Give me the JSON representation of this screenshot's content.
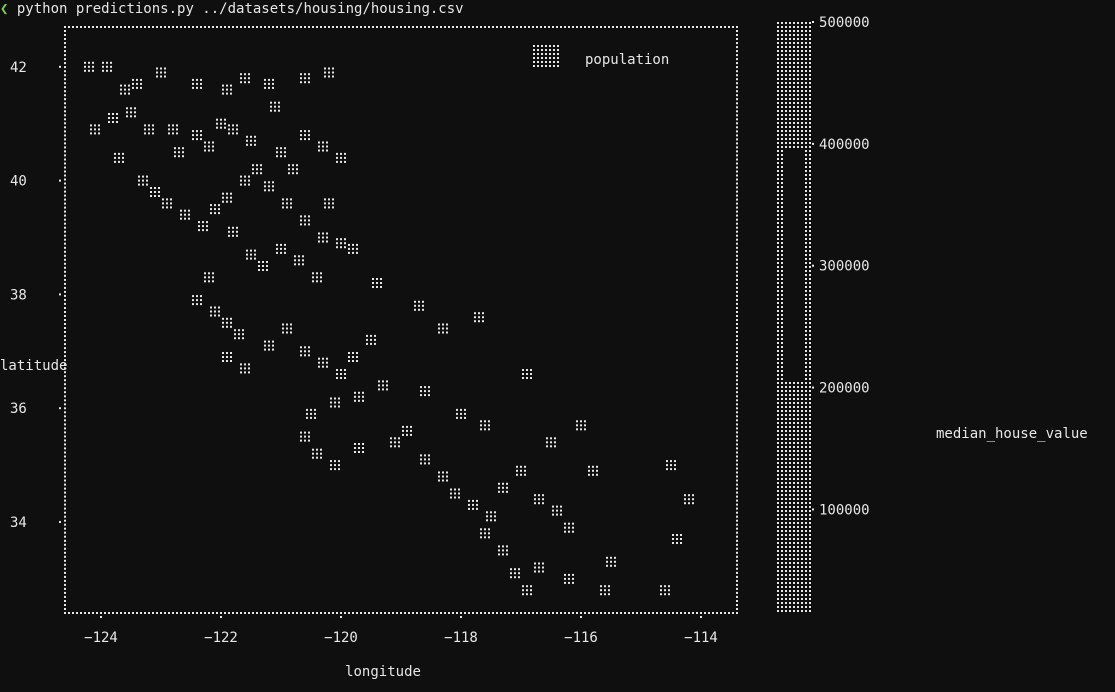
{
  "terminal": {
    "prompt_symbol": "❮",
    "command": "python predictions.py ../datasets/housing/housing.csv"
  },
  "colors": {
    "background": "#0f0f10",
    "foreground": "#e6e6e6",
    "prompt_accent": "#7bd14a"
  },
  "chart_data": {
    "type": "scatter",
    "render_style": "braille-dot terminal plot",
    "xlabel": "longitude",
    "ylabel": "latitude",
    "xlim": [
      -124.6,
      -113.4
    ],
    "ylim": [
      32.4,
      42.7
    ],
    "x_ticks": [
      -124,
      -122,
      -120,
      -118,
      -116,
      -114
    ],
    "x_tick_labels": [
      "−124",
      "−122",
      "−120",
      "−118",
      "−116",
      "−114"
    ],
    "y_ticks": [
      34,
      36,
      38,
      40,
      42
    ],
    "y_tick_labels": [
      "34",
      "36",
      "38",
      "40",
      "42"
    ],
    "legend": {
      "label": "population",
      "placement": "top-right"
    },
    "colorbar": {
      "label": "median_house_value",
      "ticks": [
        100000,
        200000,
        300000,
        400000,
        500000
      ],
      "tick_labels": [
        "100000",
        "200000",
        "300000",
        "400000",
        "500000"
      ],
      "range": [
        15000,
        500001
      ]
    },
    "series": [
      {
        "points": [
          [
            -124.2,
            42.0
          ],
          [
            -123.9,
            42.0
          ],
          [
            -123.4,
            41.7
          ],
          [
            -123.0,
            41.9
          ],
          [
            -122.4,
            41.7
          ],
          [
            -121.9,
            41.6
          ],
          [
            -121.6,
            41.8
          ],
          [
            -121.2,
            41.7
          ],
          [
            -120.6,
            41.8
          ],
          [
            -120.2,
            41.9
          ],
          [
            -124.1,
            40.9
          ],
          [
            -123.8,
            41.1
          ],
          [
            -123.5,
            41.2
          ],
          [
            -123.2,
            40.9
          ],
          [
            -122.8,
            40.9
          ],
          [
            -122.4,
            40.8
          ],
          [
            -122.2,
            40.6
          ],
          [
            -121.8,
            40.9
          ],
          [
            -121.5,
            40.7
          ],
          [
            -121.0,
            40.5
          ],
          [
            -120.6,
            40.8
          ],
          [
            -120.3,
            40.6
          ],
          [
            -120.0,
            40.4
          ],
          [
            -123.7,
            40.4
          ],
          [
            -123.3,
            40.0
          ],
          [
            -123.1,
            39.8
          ],
          [
            -122.9,
            39.6
          ],
          [
            -122.6,
            39.4
          ],
          [
            -122.3,
            39.2
          ],
          [
            -122.1,
            39.5
          ],
          [
            -121.9,
            39.7
          ],
          [
            -121.6,
            40.0
          ],
          [
            -121.4,
            40.2
          ],
          [
            -121.2,
            39.9
          ],
          [
            -120.9,
            39.6
          ],
          [
            -120.6,
            39.3
          ],
          [
            -120.3,
            39.0
          ],
          [
            -120.0,
            38.9
          ],
          [
            -121.8,
            39.1
          ],
          [
            -121.5,
            38.7
          ],
          [
            -121.3,
            38.5
          ],
          [
            -121.0,
            38.8
          ],
          [
            -120.7,
            38.6
          ],
          [
            -120.4,
            38.3
          ],
          [
            -122.2,
            38.3
          ],
          [
            -122.4,
            37.9
          ],
          [
            -122.1,
            37.7
          ],
          [
            -121.9,
            37.5
          ],
          [
            -121.7,
            37.3
          ],
          [
            -121.9,
            36.9
          ],
          [
            -121.6,
            36.7
          ],
          [
            -121.2,
            37.1
          ],
          [
            -120.9,
            37.4
          ],
          [
            -120.6,
            37.0
          ],
          [
            -120.3,
            36.8
          ],
          [
            -120.0,
            36.6
          ],
          [
            -119.8,
            36.9
          ],
          [
            -119.5,
            37.2
          ],
          [
            -119.3,
            36.4
          ],
          [
            -119.7,
            36.2
          ],
          [
            -120.1,
            36.1
          ],
          [
            -120.5,
            35.9
          ],
          [
            -120.6,
            35.5
          ],
          [
            -120.4,
            35.2
          ],
          [
            -120.1,
            35.0
          ],
          [
            -119.7,
            35.3
          ],
          [
            -119.1,
            35.4
          ],
          [
            -118.9,
            35.6
          ],
          [
            -118.6,
            35.1
          ],
          [
            -118.3,
            34.8
          ],
          [
            -118.1,
            34.5
          ],
          [
            -117.8,
            34.3
          ],
          [
            -117.5,
            34.1
          ],
          [
            -117.3,
            34.6
          ],
          [
            -117.0,
            34.9
          ],
          [
            -116.7,
            34.4
          ],
          [
            -116.4,
            34.2
          ],
          [
            -116.2,
            33.9
          ],
          [
            -117.6,
            33.8
          ],
          [
            -117.3,
            33.5
          ],
          [
            -117.1,
            33.1
          ],
          [
            -116.9,
            32.8
          ],
          [
            -116.7,
            33.2
          ],
          [
            -116.2,
            33.0
          ],
          [
            -115.6,
            32.8
          ],
          [
            -115.5,
            33.3
          ],
          [
            -114.6,
            32.8
          ],
          [
            -114.4,
            33.7
          ],
          [
            -114.2,
            34.4
          ],
          [
            -114.5,
            35.0
          ],
          [
            -115.8,
            34.9
          ],
          [
            -116.0,
            35.7
          ],
          [
            -116.5,
            35.4
          ],
          [
            -117.6,
            35.7
          ],
          [
            -118.0,
            35.9
          ],
          [
            -118.6,
            36.3
          ],
          [
            -118.3,
            37.4
          ],
          [
            -118.7,
            37.8
          ],
          [
            -117.7,
            37.6
          ],
          [
            -116.9,
            36.6
          ],
          [
            -119.4,
            38.2
          ],
          [
            -119.8,
            38.8
          ],
          [
            -120.2,
            39.6
          ],
          [
            -120.8,
            40.2
          ],
          [
            -121.1,
            41.3
          ],
          [
            -122.0,
            41.0
          ],
          [
            -122.7,
            40.5
          ],
          [
            -123.6,
            41.6
          ]
        ]
      }
    ]
  }
}
